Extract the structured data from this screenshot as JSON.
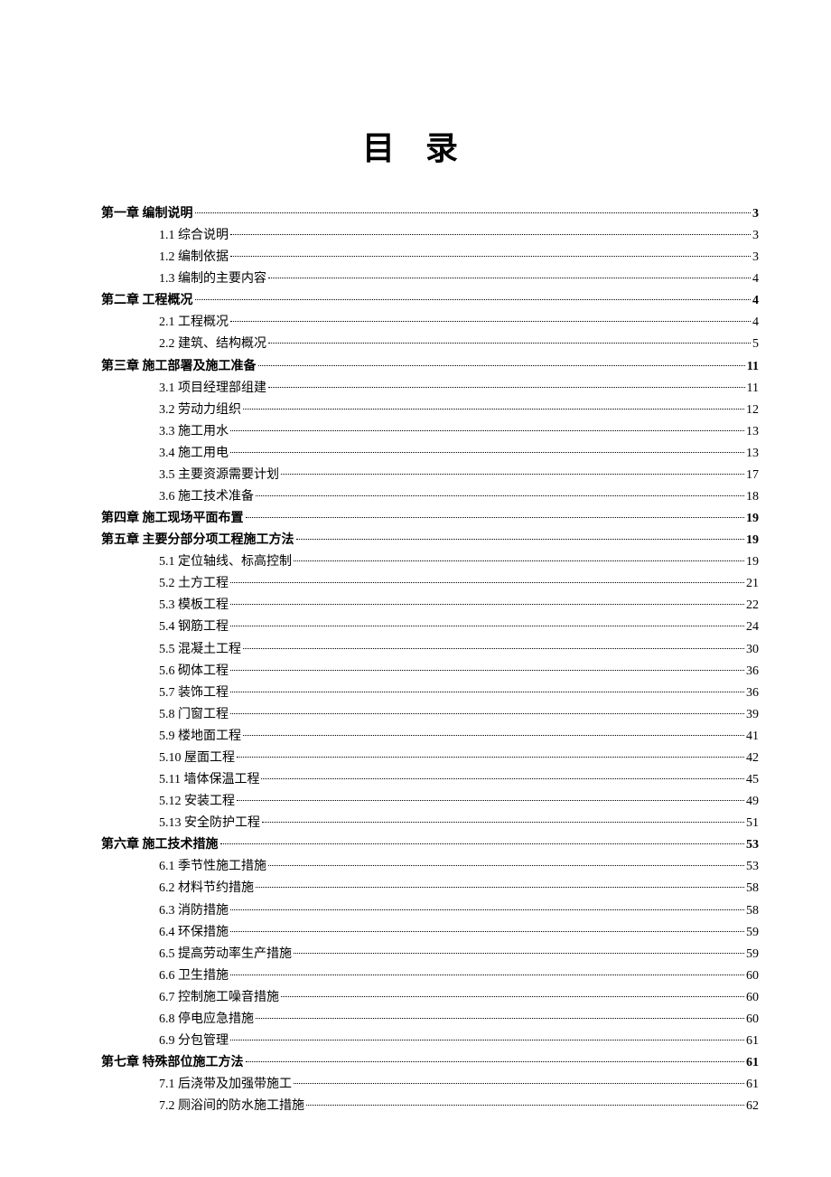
{
  "title": "目 录",
  "entries": [
    {
      "level": 1,
      "label": "第一章  编制说明",
      "page": "3"
    },
    {
      "level": 2,
      "label": "1.1 综合说明",
      "page": "3"
    },
    {
      "level": 2,
      "label": "1.2 编制依据",
      "page": "3"
    },
    {
      "level": 2,
      "label": "1.3 编制的主要内容",
      "page": "4"
    },
    {
      "level": 1,
      "label": "第二章  工程概况",
      "page": "4"
    },
    {
      "level": 2,
      "label": "2.1 工程概况",
      "page": "4"
    },
    {
      "level": 2,
      "label": "2.2  建筑、结构概况",
      "page": "5"
    },
    {
      "level": 1,
      "label": "第三章  施工部署及施工准备",
      "page": "11"
    },
    {
      "level": 2,
      "label": "3.1 项目经理部组建",
      "page": "11"
    },
    {
      "level": 2,
      "label": "3.2 劳动力组织",
      "page": "12"
    },
    {
      "level": 2,
      "label": "3.3 施工用水",
      "page": "13"
    },
    {
      "level": 2,
      "label": "3.4 施工用电",
      "page": "13"
    },
    {
      "level": 2,
      "label": "3.5 主要资源需要计划",
      "page": "17"
    },
    {
      "level": 2,
      "label": "3.6 施工技术准备",
      "page": "18"
    },
    {
      "level": 1,
      "label": "第四章  施工现场平面布置",
      "page": "19"
    },
    {
      "level": 1,
      "label": "第五章  主要分部分项工程施工方法",
      "page": "19"
    },
    {
      "level": 2,
      "label": "5.1 定位轴线、标高控制",
      "page": "19"
    },
    {
      "level": 2,
      "label": "5.2 土方工程",
      "page": "21"
    },
    {
      "level": 2,
      "label": "5.3 模板工程",
      "page": "22"
    },
    {
      "level": 2,
      "label": "5.4 钢筋工程",
      "page": "24"
    },
    {
      "level": 2,
      "label": "5.5 混凝土工程",
      "page": "30"
    },
    {
      "level": 2,
      "label": "5.6  砌体工程",
      "page": "36"
    },
    {
      "level": 2,
      "label": "5.7  装饰工程",
      "page": "36"
    },
    {
      "level": 2,
      "label": "5.8  门窗工程",
      "page": "39"
    },
    {
      "level": 2,
      "label": "5.9 楼地面工程",
      "page": "41"
    },
    {
      "level": 2,
      "label": "5.10  屋面工程",
      "page": "42"
    },
    {
      "level": 2,
      "label": "5.11 墙体保温工程",
      "page": "45"
    },
    {
      "level": 2,
      "label": "5.12  安装工程",
      "page": "49"
    },
    {
      "level": 2,
      "label": "5.13 安全防护工程",
      "page": "51"
    },
    {
      "level": 1,
      "label": "第六章  施工技术措施",
      "page": "53"
    },
    {
      "level": 2,
      "label": "6.1 季节性施工措施",
      "page": "53"
    },
    {
      "level": 2,
      "label": "6.2 材料节约措施",
      "page": "58"
    },
    {
      "level": 2,
      "label": "6.3 消防措施",
      "page": "58"
    },
    {
      "level": 2,
      "label": "6.4 环保措施",
      "page": "59"
    },
    {
      "level": 2,
      "label": "6.5 提高劳动率生产措施",
      "page": "59"
    },
    {
      "level": 2,
      "label": "6.6 卫生措施",
      "page": "60"
    },
    {
      "level": 2,
      "label": "6.7 控制施工噪音措施",
      "page": "60"
    },
    {
      "level": 2,
      "label": "6.8 停电应急措施",
      "page": "60"
    },
    {
      "level": 2,
      "label": "6.9 分包管理",
      "page": "61"
    },
    {
      "level": 1,
      "label": "第七章  特殊部位施工方法",
      "page": "61"
    },
    {
      "level": 2,
      "label": "7.1 后浇带及加强带施工",
      "page": "61"
    },
    {
      "level": 2,
      "label": "7.2 厕浴间的防水施工措施",
      "page": "62"
    }
  ]
}
